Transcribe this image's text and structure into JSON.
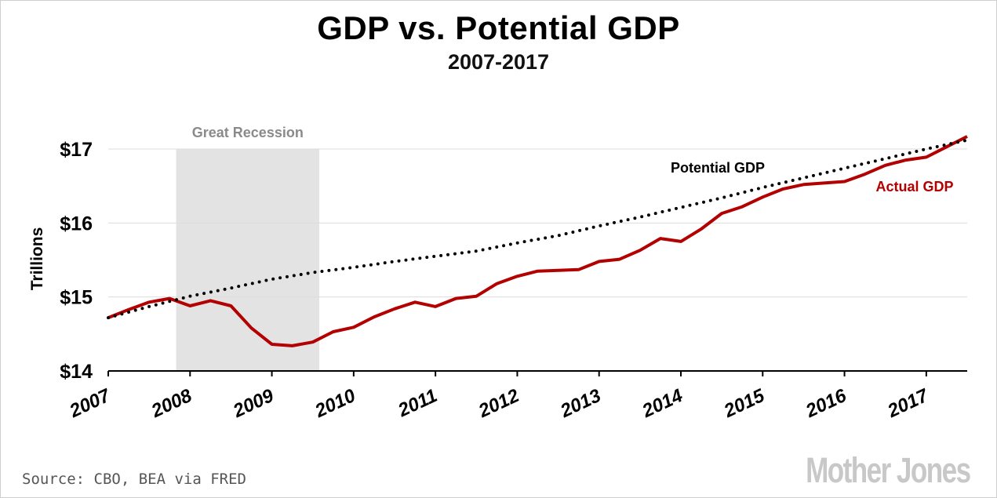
{
  "title": "GDP vs. Potential GDP",
  "subtitle": "2007-2017",
  "source": "Source: CBO, BEA via FRED",
  "logo": "Mother Jones",
  "chart_data": {
    "type": "line",
    "title": "GDP vs. Potential GDP",
    "subtitle": "2007-2017",
    "ylabel": "Trillions",
    "xlabel": "",
    "x_ticks": [
      "2007",
      "2008",
      "2009",
      "2010",
      "2011",
      "2012",
      "2013",
      "2014",
      "2015",
      "2016",
      "2017"
    ],
    "y_ticks": [
      {
        "value": 14,
        "label": "$14"
      },
      {
        "value": 15,
        "label": "$15"
      },
      {
        "value": 16,
        "label": "$16"
      },
      {
        "value": 17,
        "label": "$17"
      }
    ],
    "xlim": [
      2007.0,
      2017.5
    ],
    "ylim": [
      14,
      17.2
    ],
    "grid": "horizontal",
    "shaded_region": {
      "label": "Great Recession",
      "start": 2007.83,
      "end": 2009.58,
      "color": "#e3e3e3"
    },
    "series": [
      {
        "name": "Actual GDP",
        "style": "solid",
        "color": "#b30000",
        "points": [
          [
            2007.0,
            14.72
          ],
          [
            2007.25,
            14.83
          ],
          [
            2007.5,
            14.93
          ],
          [
            2007.75,
            14.98
          ],
          [
            2008.0,
            14.88
          ],
          [
            2008.25,
            14.95
          ],
          [
            2008.5,
            14.88
          ],
          [
            2008.75,
            14.58
          ],
          [
            2009.0,
            14.36
          ],
          [
            2009.25,
            14.34
          ],
          [
            2009.5,
            14.39
          ],
          [
            2009.75,
            14.53
          ],
          [
            2010.0,
            14.59
          ],
          [
            2010.25,
            14.73
          ],
          [
            2010.5,
            14.84
          ],
          [
            2010.75,
            14.93
          ],
          [
            2011.0,
            14.87
          ],
          [
            2011.25,
            14.98
          ],
          [
            2011.5,
            15.01
          ],
          [
            2011.75,
            15.18
          ],
          [
            2012.0,
            15.28
          ],
          [
            2012.25,
            15.35
          ],
          [
            2012.5,
            15.36
          ],
          [
            2012.75,
            15.37
          ],
          [
            2013.0,
            15.48
          ],
          [
            2013.25,
            15.51
          ],
          [
            2013.5,
            15.63
          ],
          [
            2013.75,
            15.79
          ],
          [
            2014.0,
            15.75
          ],
          [
            2014.25,
            15.92
          ],
          [
            2014.5,
            16.13
          ],
          [
            2014.75,
            16.22
          ],
          [
            2015.0,
            16.35
          ],
          [
            2015.25,
            16.46
          ],
          [
            2015.5,
            16.52
          ],
          [
            2015.75,
            16.54
          ],
          [
            2016.0,
            16.56
          ],
          [
            2016.25,
            16.66
          ],
          [
            2016.5,
            16.78
          ],
          [
            2016.75,
            16.85
          ],
          [
            2017.0,
            16.89
          ],
          [
            2017.25,
            17.03
          ],
          [
            2017.5,
            17.17
          ]
        ]
      },
      {
        "name": "Potential GDP",
        "style": "dotted",
        "color": "#000000",
        "points": [
          [
            2007.0,
            14.72
          ],
          [
            2007.5,
            14.87
          ],
          [
            2008.0,
            15.01
          ],
          [
            2008.5,
            15.12
          ],
          [
            2009.0,
            15.24
          ],
          [
            2009.5,
            15.33
          ],
          [
            2010.0,
            15.4
          ],
          [
            2010.5,
            15.48
          ],
          [
            2011.0,
            15.55
          ],
          [
            2011.5,
            15.62
          ],
          [
            2012.0,
            15.73
          ],
          [
            2012.5,
            15.83
          ],
          [
            2013.0,
            15.96
          ],
          [
            2013.5,
            16.08
          ],
          [
            2014.0,
            16.21
          ],
          [
            2014.5,
            16.34
          ],
          [
            2015.0,
            16.48
          ],
          [
            2015.5,
            16.61
          ],
          [
            2016.0,
            16.74
          ],
          [
            2016.5,
            16.87
          ],
          [
            2017.0,
            17.0
          ],
          [
            2017.5,
            17.12
          ]
        ]
      }
    ],
    "annotations": [
      {
        "text": "Great Recession",
        "color": "#8a8a8a"
      },
      {
        "text": "Potential GDP",
        "color": "#000000"
      },
      {
        "text": "Actual GDP",
        "color": "#b30000"
      }
    ]
  }
}
